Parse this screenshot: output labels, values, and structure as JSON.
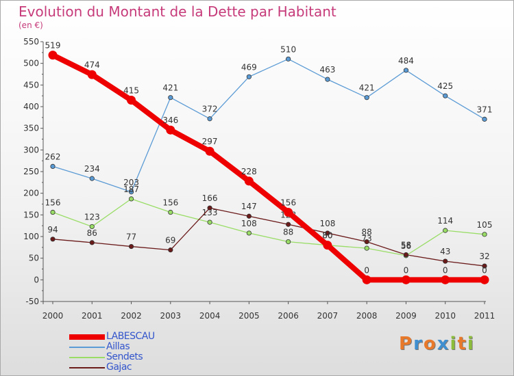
{
  "header": {
    "title": "Evolution du Montant de la Dette par Habitant",
    "subtitle": "(en €)"
  },
  "colors": {
    "title": "#c63a7a",
    "axis_text": "#333333"
  },
  "brand": {
    "letters": [
      "P",
      "r",
      "o",
      "x",
      "i",
      "t",
      "i"
    ],
    "colors": [
      "#e8792b",
      "#3f8fd0",
      "#e8792b",
      "#3f8fd0",
      "#8cbd3a",
      "#e8792b",
      "#8cbd3a"
    ]
  },
  "chart_data": {
    "type": "line",
    "x": [
      "2000",
      "2001",
      "2002",
      "2003",
      "2004",
      "2005",
      "2006",
      "2007",
      "2008",
      "2009",
      "2010",
      "2011"
    ],
    "ylim": [
      -50,
      550
    ],
    "yticks": [
      -50,
      0,
      50,
      100,
      150,
      200,
      250,
      300,
      350,
      400,
      450,
      500,
      550
    ],
    "grid": false,
    "legend_position": "bottom-left",
    "series": [
      {
        "name": "LABESCAU",
        "color": "#ee0000",
        "emphasis": true,
        "values": [
          519,
          474,
          415,
          346,
          297,
          228,
          156,
          80,
          0,
          0,
          0,
          0
        ],
        "labels": [
          "519",
          "474",
          "415",
          "346",
          "297",
          "228",
          "156",
          "80",
          "0",
          "0",
          "0",
          "0"
        ]
      },
      {
        "name": "Aillas",
        "color": "#5b9bd5",
        "emphasis": false,
        "values": [
          262,
          234,
          203,
          421,
          372,
          469,
          510,
          463,
          421,
          484,
          425,
          371
        ],
        "labels": [
          "262",
          "234",
          "203",
          "421",
          "372",
          "469",
          "510",
          "463",
          "421",
          "484",
          "425",
          "371"
        ]
      },
      {
        "name": "Sendets",
        "color": "#99dd66",
        "emphasis": false,
        "values": [
          156,
          123,
          187,
          156,
          133,
          108,
          88,
          80,
          73,
          56,
          114,
          105
        ],
        "labels": [
          "156",
          "123",
          "187",
          "156",
          "133",
          "108",
          "88",
          "80",
          "73",
          "56",
          "114",
          "105"
        ]
      },
      {
        "name": "Gajac",
        "color": "#6b1a1a",
        "emphasis": false,
        "values": [
          94,
          86,
          77,
          69,
          166,
          147,
          128,
          108,
          88,
          58,
          43,
          32
        ],
        "labels": [
          "94",
          "86",
          "77",
          "69",
          "166",
          "147",
          "128",
          "108",
          "88",
          "58",
          "43",
          "32"
        ]
      }
    ]
  }
}
